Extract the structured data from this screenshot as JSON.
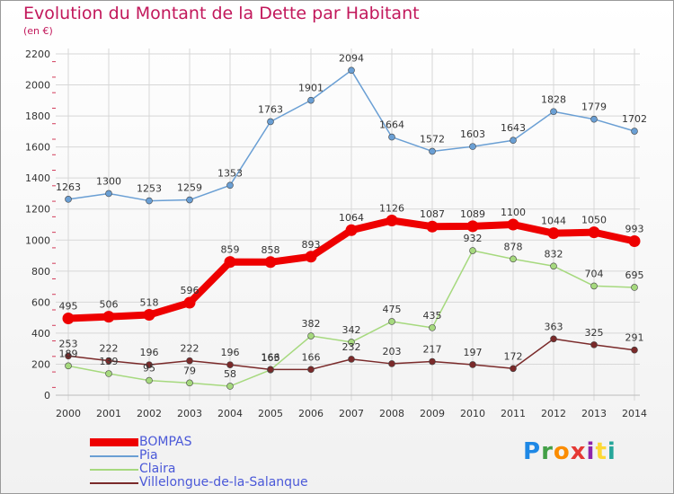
{
  "header": {
    "title": "Evolution du Montant de la Dette par Habitant",
    "subtitle": "(en €)"
  },
  "logo": {
    "text": "Proxiti",
    "letters": [
      "P",
      "r",
      "o",
      "x",
      "i",
      "t",
      "i"
    ]
  },
  "chart_data": {
    "type": "line",
    "title": "Evolution du Montant de la Dette par Habitant",
    "subtitle": "(en €)",
    "xlabel": "",
    "ylabel": "",
    "ylim": [
      0,
      2200
    ],
    "yticks": [
      0,
      200,
      400,
      600,
      800,
      1000,
      1200,
      1400,
      1600,
      1800,
      2000,
      2200
    ],
    "grid": true,
    "legend_position": "bottom-left",
    "categories": [
      "2000",
      "2001",
      "2002",
      "2003",
      "2004",
      "2005",
      "2006",
      "2007",
      "2008",
      "2009",
      "2010",
      "2011",
      "2012",
      "2013",
      "2014"
    ],
    "series": [
      {
        "name": "BOMPAS",
        "color": "#ee0000",
        "emphasis": true,
        "values": [
          495,
          506,
          518,
          596,
          859,
          858,
          893,
          1064,
          1126,
          1087,
          1089,
          1100,
          1044,
          1050,
          993
        ]
      },
      {
        "name": "Pia",
        "color": "#6a9fd4",
        "values": [
          1263,
          1300,
          1253,
          1259,
          1353,
          1763,
          1901,
          2094,
          1664,
          1572,
          1603,
          1643,
          1828,
          1779,
          1702
        ]
      },
      {
        "name": "Claira",
        "color": "#a6d97e",
        "values": [
          189,
          139,
          95,
          79,
          58,
          163,
          382,
          342,
          475,
          435,
          932,
          878,
          832,
          704,
          695
        ]
      },
      {
        "name": "Villelongue-de-la-Salanque",
        "color": "#7a2a2a",
        "values": [
          253,
          222,
          196,
          222,
          196,
          166,
          166,
          232,
          203,
          217,
          197,
          172,
          363,
          325,
          291
        ]
      }
    ]
  }
}
